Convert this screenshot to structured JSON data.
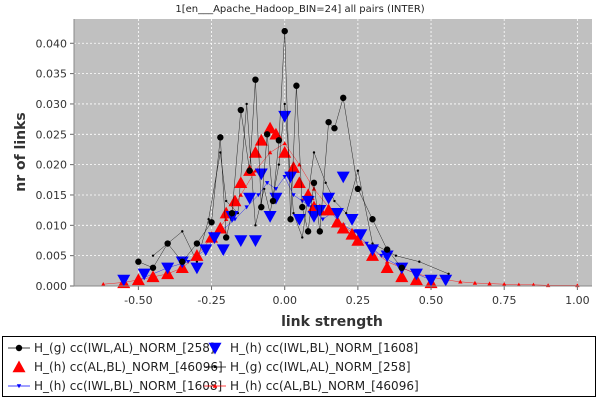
{
  "chart_data": {
    "type": "scatter",
    "title": "1[en___Apache_Hadoop_BIN=24] all pairs (INTER)",
    "xlabel": "link strength",
    "ylabel": "nr of links",
    "xlim": [
      -0.72,
      1.05
    ],
    "ylim": [
      0,
      0.044
    ],
    "x_ticks": [
      "-0.50",
      "-0.25",
      "0.00",
      "0.25",
      "0.50",
      "0.75",
      "1.00"
    ],
    "y_ticks": [
      "0.000",
      "0.005",
      "0.010",
      "0.015",
      "0.020",
      "0.025",
      "0.030",
      "0.035",
      "0.040"
    ],
    "grid": true,
    "legend_position": "bottom",
    "series": [
      {
        "name": "H_(g) cc(IWL,AL)_NORM_[258]",
        "marker": "circle-large",
        "color": "#000000",
        "x": [
          -0.5,
          -0.45,
          -0.4,
          -0.35,
          -0.3,
          -0.25,
          -0.22,
          -0.2,
          -0.18,
          -0.15,
          -0.12,
          -0.1,
          -0.08,
          -0.06,
          -0.04,
          -0.02,
          0.0,
          0.02,
          0.04,
          0.06,
          0.08,
          0.1,
          0.12,
          0.15,
          0.17,
          0.2,
          0.25,
          0.3,
          0.35,
          0.4
        ],
        "values": [
          0.004,
          0.003,
          0.007,
          0.004,
          0.007,
          0.0105,
          0.0245,
          0.008,
          0.012,
          0.029,
          0.019,
          0.034,
          0.013,
          0.025,
          0.014,
          0.024,
          0.042,
          0.011,
          0.033,
          0.013,
          0.009,
          0.017,
          0.009,
          0.027,
          0.026,
          0.031,
          0.016,
          0.011,
          0.006,
          0.003
        ]
      },
      {
        "name": "H_(h) cc(IWL,BL)_NORM_[1608]",
        "marker": "triangle-down-large",
        "color": "#0000ff",
        "x": [
          -0.55,
          -0.48,
          -0.4,
          -0.35,
          -0.3,
          -0.27,
          -0.24,
          -0.21,
          -0.18,
          -0.15,
          -0.12,
          -0.1,
          -0.08,
          -0.05,
          -0.03,
          0.0,
          0.02,
          0.05,
          0.08,
          0.1,
          0.12,
          0.15,
          0.18,
          0.2,
          0.23,
          0.26,
          0.3,
          0.35,
          0.4,
          0.45,
          0.5,
          0.55
        ],
        "values": [
          0.001,
          0.002,
          0.003,
          0.004,
          0.003,
          0.006,
          0.008,
          0.006,
          0.0115,
          0.0075,
          0.0145,
          0.0075,
          0.0185,
          0.0115,
          0.0145,
          0.028,
          0.018,
          0.011,
          0.014,
          0.0115,
          0.0125,
          0.0145,
          0.012,
          0.018,
          0.011,
          0.0085,
          0.006,
          0.005,
          0.003,
          0.002,
          0.001,
          0.001
        ]
      },
      {
        "name": "H_(h) cc(AL,BL)_NORM_[46096]",
        "marker": "triangle-up-large",
        "color": "#ff0000",
        "x": [
          -0.55,
          -0.5,
          -0.45,
          -0.4,
          -0.35,
          -0.3,
          -0.25,
          -0.22,
          -0.2,
          -0.17,
          -0.15,
          -0.12,
          -0.1,
          -0.08,
          -0.05,
          -0.03,
          0.0,
          0.03,
          0.05,
          0.08,
          0.1,
          0.12,
          0.15,
          0.18,
          0.2,
          0.23,
          0.25,
          0.3,
          0.35,
          0.4,
          0.45,
          0.5
        ],
        "values": [
          0.0005,
          0.001,
          0.0015,
          0.002,
          0.003,
          0.005,
          0.008,
          0.0095,
          0.012,
          0.014,
          0.017,
          0.019,
          0.022,
          0.024,
          0.026,
          0.025,
          0.022,
          0.0195,
          0.017,
          0.015,
          0.013,
          0.0125,
          0.0125,
          0.0105,
          0.0095,
          0.0085,
          0.0075,
          0.005,
          0.003,
          0.0015,
          0.001,
          0.0005
        ]
      },
      {
        "name": "H_(g) cc(IWL,AL)_NORM_[258]",
        "marker": "circle-small",
        "color": "#000000",
        "x": [
          -0.45,
          -0.35,
          -0.3,
          -0.26,
          -0.22,
          -0.2,
          -0.16,
          -0.13,
          -0.1,
          -0.07,
          -0.05,
          -0.02,
          0.0,
          0.03,
          0.06,
          0.1,
          0.14,
          0.17,
          0.21,
          0.25,
          0.3,
          0.38,
          0.46,
          0.56
        ],
        "values": [
          0.005,
          0.009,
          0.004,
          0.011,
          0.022,
          0.014,
          0.012,
          0.03,
          0.01,
          0.016,
          0.012,
          0.02,
          0.03,
          0.012,
          0.008,
          0.022,
          0.017,
          0.014,
          0.012,
          0.019,
          0.007,
          0.005,
          0.004,
          0.002
        ]
      },
      {
        "name": "H_(h) cc(IWL,BL)_NORM_[1608]",
        "marker": "triangle-down-small",
        "color": "#0000ff",
        "x": [
          -0.5,
          -0.4,
          -0.33,
          -0.27,
          -0.22,
          -0.17,
          -0.13,
          -0.09,
          -0.06,
          -0.03,
          0.0,
          0.03,
          0.06,
          0.09,
          0.13,
          0.16,
          0.2,
          0.24,
          0.28,
          0.33,
          0.4,
          0.5
        ],
        "values": [
          0.001,
          0.003,
          0.004,
          0.006,
          0.009,
          0.011,
          0.013,
          0.015,
          0.017,
          0.016,
          0.018,
          0.015,
          0.014,
          0.013,
          0.011,
          0.012,
          0.01,
          0.009,
          0.007,
          0.005,
          0.003,
          0.001
        ]
      },
      {
        "name": "H_(h) cc(AL,BL)_NORM_[46096]",
        "marker": "triangle-up-small",
        "color": "#ff0000",
        "x": [
          -0.62,
          -0.55,
          -0.5,
          -0.45,
          -0.4,
          -0.35,
          -0.3,
          -0.25,
          -0.2,
          -0.15,
          -0.1,
          -0.05,
          0.0,
          0.05,
          0.1,
          0.15,
          0.2,
          0.25,
          0.3,
          0.35,
          0.4,
          0.45,
          0.5,
          0.55,
          0.6,
          0.65,
          0.7,
          0.75,
          0.8,
          0.85,
          0.9,
          1.0
        ],
        "values": [
          0.0003,
          0.0006,
          0.001,
          0.0015,
          0.002,
          0.003,
          0.005,
          0.008,
          0.011,
          0.015,
          0.019,
          0.022,
          0.0235,
          0.02,
          0.016,
          0.013,
          0.01,
          0.008,
          0.006,
          0.004,
          0.003,
          0.002,
          0.0015,
          0.001,
          0.0007,
          0.0005,
          0.0004,
          0.0003,
          0.0002,
          0.0002,
          0.0001,
          0.0001
        ]
      }
    ]
  }
}
